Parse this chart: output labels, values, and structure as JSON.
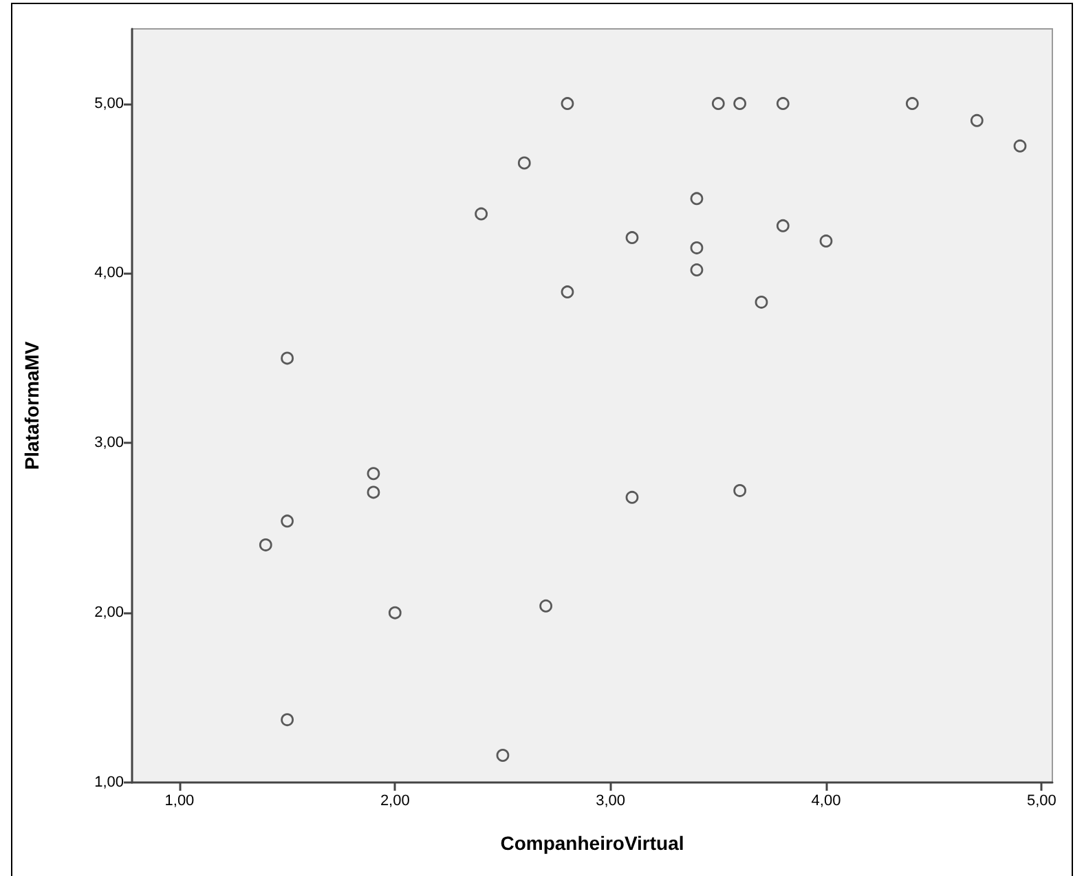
{
  "chart_data": {
    "type": "scatter",
    "xlabel": "CompanheiroVirtual",
    "ylabel": "PlataformaMV",
    "color": "#333333",
    "marker": "circle",
    "x": [
      2.8,
      2.6,
      2.4,
      2.8,
      1.5,
      3.5,
      3.6,
      3.8,
      4.4,
      4.7,
      4.9,
      3.4,
      3.1,
      3.8,
      4.0,
      3.4,
      3.4,
      3.7,
      1.9,
      1.9,
      1.5,
      1.4,
      2.0,
      2.7,
      1.5,
      2.5,
      3.1,
      3.6
    ],
    "values": [
      5.0,
      4.65,
      4.35,
      3.89,
      3.5,
      5.0,
      5.0,
      5.0,
      5.0,
      4.9,
      4.75,
      4.44,
      4.21,
      4.28,
      4.19,
      4.15,
      4.02,
      3.83,
      2.82,
      2.71,
      2.54,
      2.4,
      2.0,
      2.04,
      1.37,
      1.16,
      2.68,
      2.72
    ],
    "xlim": [
      0.78,
      5.05
    ],
    "xticks": [
      {
        "value": 1,
        "label": "1,00"
      },
      {
        "value": 2,
        "label": "2,00"
      },
      {
        "value": 3,
        "label": "3,00"
      },
      {
        "value": 4,
        "label": "4,00"
      },
      {
        "value": 5,
        "label": "5,00"
      }
    ],
    "ylim": [
      1,
      5.44
    ],
    "yticks": [
      {
        "value": 1,
        "label": "1,00"
      },
      {
        "value": 2,
        "label": "2,00"
      },
      {
        "value": 3,
        "label": "3,00"
      },
      {
        "value": 4,
        "label": "4,00"
      },
      {
        "value": 5,
        "label": "5,00"
      }
    ]
  }
}
